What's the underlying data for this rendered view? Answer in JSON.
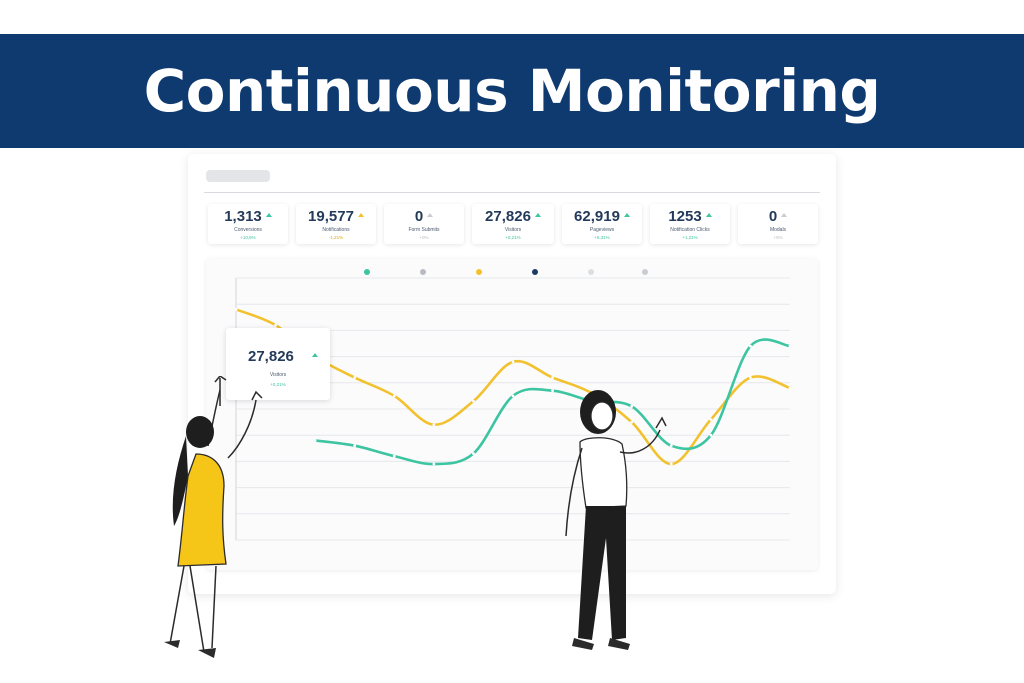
{
  "banner": {
    "title": "Continuous Monitoring"
  },
  "colors": {
    "banner_bg": "#0f3a70",
    "teal": "#3dc4a0",
    "yellow": "#f2c12e",
    "navy": "#1d3a66",
    "grey": "#b8bcc2"
  },
  "stats": [
    {
      "value": "1,313",
      "label": "Conversions",
      "change": "+10,6%",
      "trend": "up",
      "color": "#3dc4a0"
    },
    {
      "value": "19,577",
      "label": "Notifications",
      "change": "-1,21%",
      "trend": "up",
      "color": "#f2c12e"
    },
    {
      "value": "0",
      "label": "Form Submits",
      "change": "+0%",
      "trend": "up",
      "color": "#c9ccd1"
    },
    {
      "value": "27,826",
      "label": "Visitors",
      "change": "+0,21%",
      "trend": "up",
      "color": "#3dc4a0"
    },
    {
      "value": "62,919",
      "label": "Pageviews",
      "change": "+5,31%",
      "trend": "up",
      "color": "#3dc4a0"
    },
    {
      "value": "1253",
      "label": "Notification Clicks",
      "change": "+1,21%",
      "trend": "up",
      "color": "#3dc4a0"
    },
    {
      "value": "0",
      "label": "Modals",
      "change": "+0%",
      "trend": "up",
      "color": "#c9ccd1"
    }
  ],
  "legend_dots": [
    "#3dc4a0",
    "#b8bcc2",
    "#f2c12e",
    "#1d3a66",
    "#dcdee2",
    "#c9ccd1"
  ],
  "float_card": {
    "value": "27,826",
    "label": "Visitors",
    "change": "+0,21%"
  },
  "chart_data": {
    "type": "line",
    "x": [
      0,
      1,
      2,
      3,
      4,
      5,
      6,
      7,
      8,
      9,
      10,
      11,
      12,
      13,
      14
    ],
    "series": [
      {
        "color": "#f2c12e",
        "values": [
          88,
          82,
          70,
          62,
          55,
          44,
          53,
          68,
          62,
          56,
          45,
          29,
          46,
          62,
          58
        ]
      },
      {
        "color": "#3dc4a0",
        "values": [
          null,
          null,
          38,
          36,
          32,
          29,
          33,
          55,
          57,
          53,
          51,
          36,
          40,
          74,
          74
        ]
      }
    ],
    "grid": true
  }
}
